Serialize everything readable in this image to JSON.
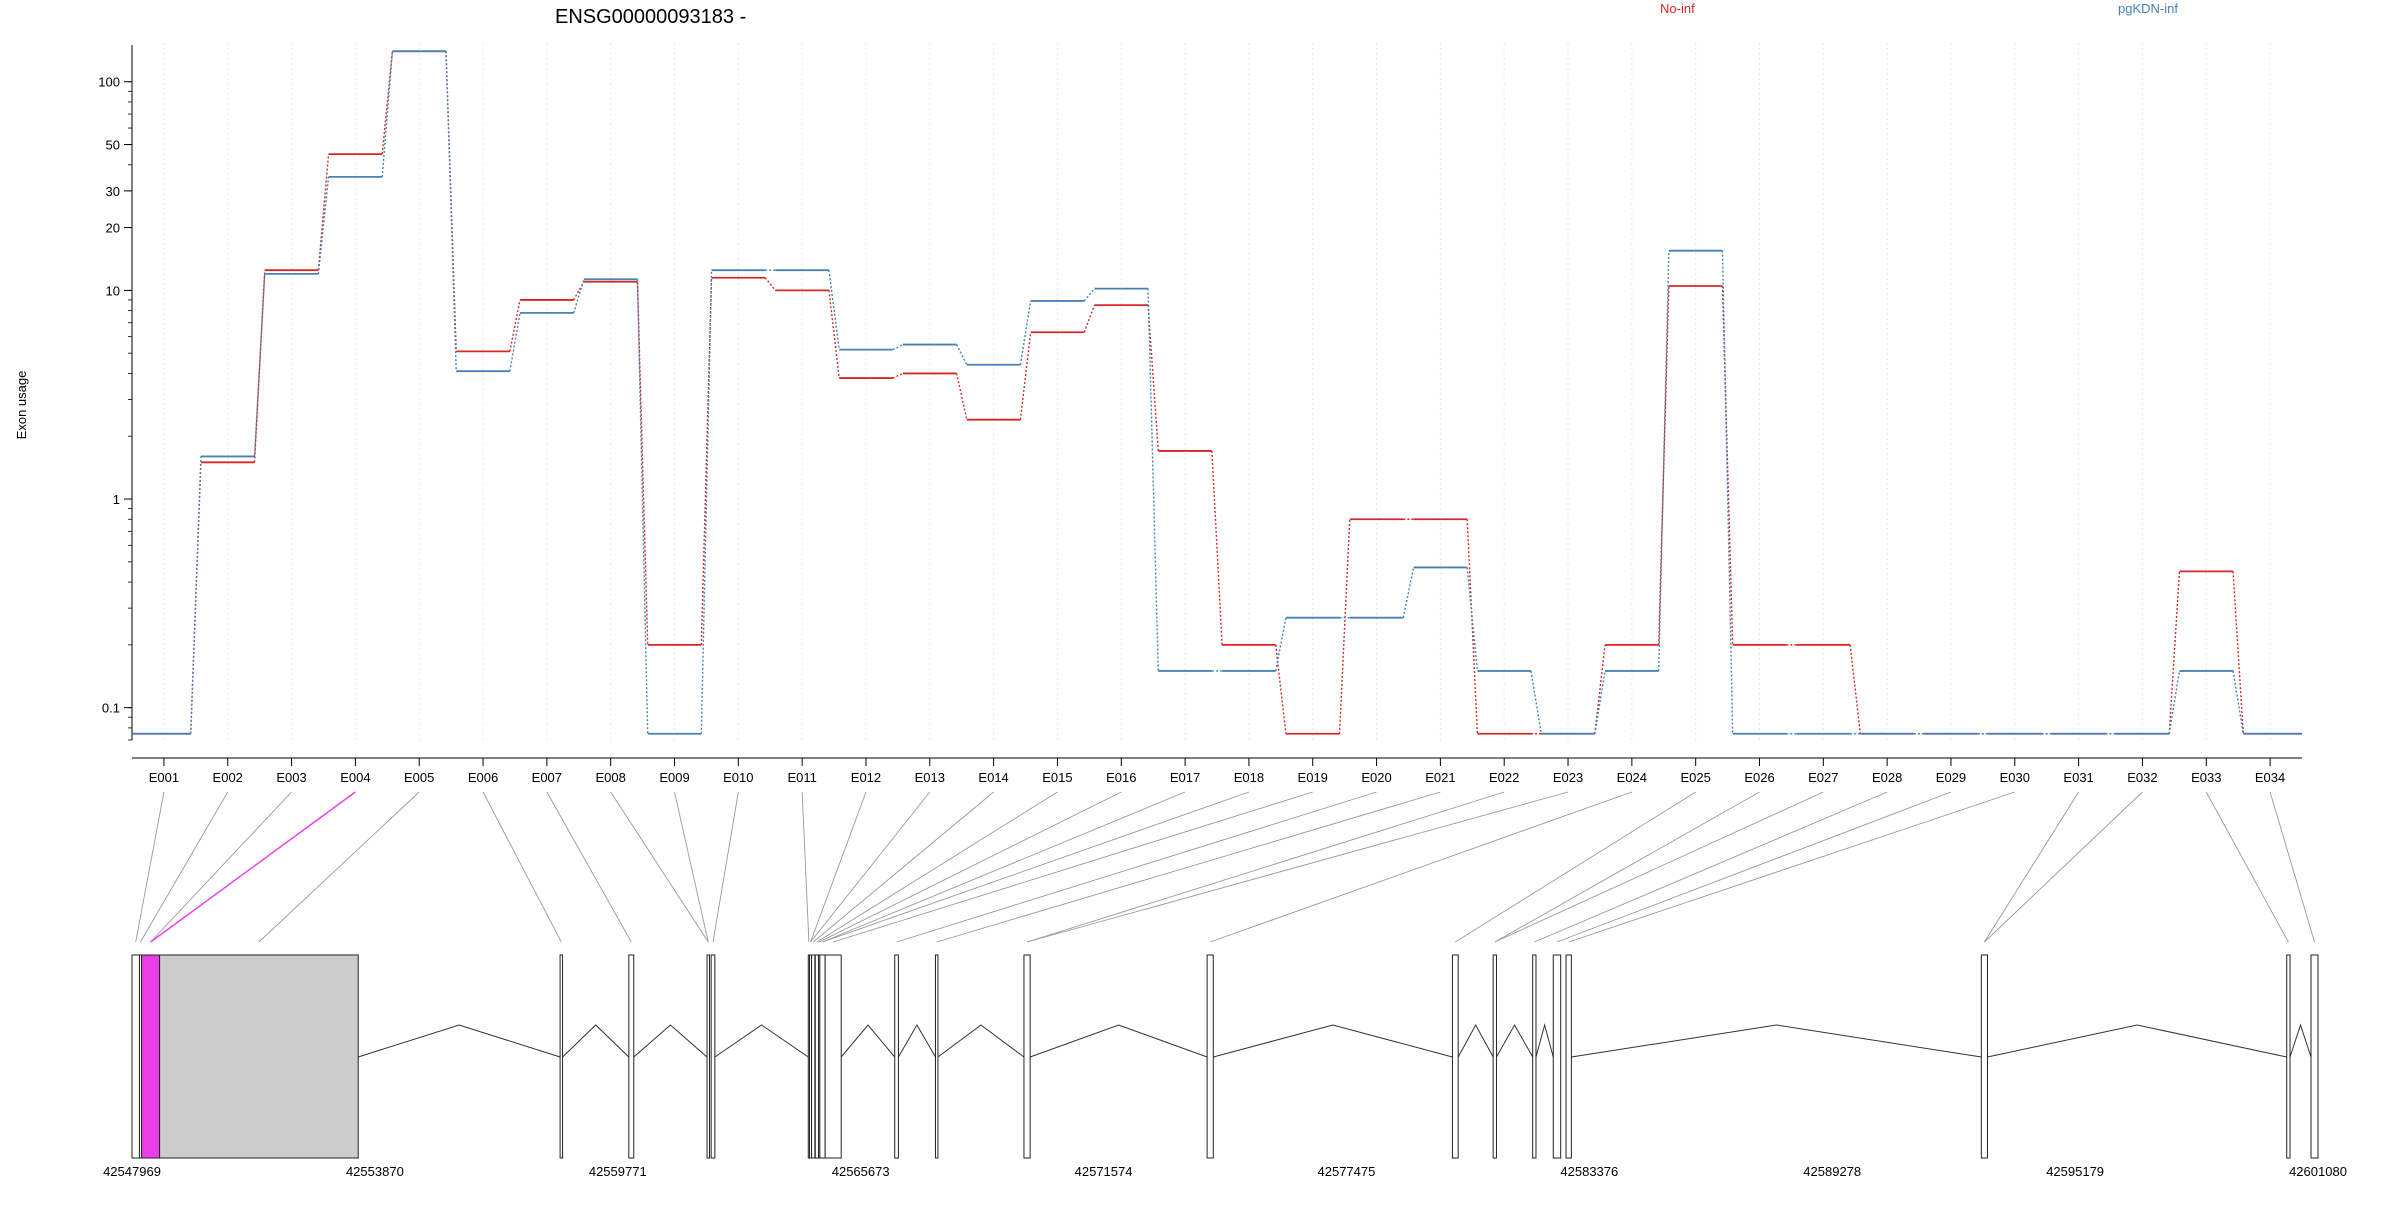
{
  "chart_data": {
    "type": "line",
    "title": "ENSG00000093183 -",
    "ylabel": "Exon usage",
    "xlabel": "",
    "y_scale": "log",
    "y_ticks": [
      0.1,
      1,
      10,
      20,
      30,
      50,
      100
    ],
    "y_tick_labels": [
      "0.1",
      "1",
      "10",
      "20",
      "30",
      "50",
      "100"
    ],
    "ylim": [
      0.07,
      150
    ],
    "grid": "vertical dotted",
    "legend_placement": "top",
    "categories": [
      "E001",
      "E002",
      "E003",
      "E004",
      "E005",
      "E006",
      "E007",
      "E008",
      "E009",
      "E010",
      "E011",
      "E012",
      "E013",
      "E014",
      "E015",
      "E016",
      "E017",
      "E018",
      "E019",
      "E020",
      "E021",
      "E022",
      "E023",
      "E024",
      "E025",
      "E026",
      "E027",
      "E028",
      "E029",
      "E030",
      "E031",
      "E032",
      "E033",
      "E034"
    ],
    "series": [
      {
        "name": "No-inf",
        "color": "#d62728",
        "values": [
          0.075,
          1.5,
          12.5,
          45,
          140,
          5.1,
          9,
          11,
          0.2,
          11.5,
          10,
          3.8,
          4,
          2.4,
          6.3,
          8.5,
          1.7,
          0.2,
          0.075,
          0.8,
          0.8,
          0.075,
          0.075,
          0.2,
          10.5,
          0.2,
          0.2,
          0.075,
          0.075,
          0.075,
          0.075,
          0.075,
          0.45,
          0.075
        ]
      },
      {
        "name": "pgKDN-inf",
        "color": "#4682b4",
        "values": [
          0.075,
          1.6,
          12,
          35,
          140,
          4.1,
          7.8,
          11.3,
          0.075,
          12.5,
          12.5,
          5.2,
          5.5,
          4.4,
          8.9,
          10.2,
          0.15,
          0.15,
          0.27,
          0.27,
          0.47,
          0.15,
          0.075,
          0.15,
          15.5,
          0.075,
          0.075,
          0.075,
          0.075,
          0.075,
          0.075,
          0.075,
          0.15,
          0.075
        ]
      }
    ],
    "highlighted_exon": "E004",
    "highlight_color": "#e83ee8",
    "gene_model": {
      "coordinate_ticks": [
        "42547969",
        "42553870",
        "42559771",
        "42565673",
        "42571574",
        "42577475",
        "42583376",
        "42589278",
        "42595179",
        "42601080"
      ],
      "range": [
        42547969,
        42601080
      ],
      "exons": [
        [
          42547969,
          42548150
        ],
        [
          42548150,
          42548200
        ],
        [
          42548200,
          42548640
        ],
        [
          42548640,
          42553465
        ],
        [
          42558370,
          42558430
        ],
        [
          42560040,
          42560160
        ],
        [
          42561940,
          42562000
        ],
        [
          42562040,
          42562130
        ],
        [
          42564400,
          42564430
        ],
        [
          42564430,
          42564480
        ],
        [
          42564480,
          42564560
        ],
        [
          42564570,
          42564650
        ],
        [
          42564650,
          42564680
        ],
        [
          42564680,
          42564810
        ],
        [
          42564810,
          42565200
        ],
        [
          42566500,
          42566590
        ],
        [
          42567490,
          42567550
        ],
        [
          42569640,
          42569790
        ],
        [
          42574090,
          42574240
        ],
        [
          42580050,
          42580190
        ],
        [
          42581040,
          42581120
        ],
        [
          42582000,
          42582080
        ],
        [
          42582500,
          42582680
        ],
        [
          42582810,
          42582940
        ],
        [
          42592900,
          42593050
        ],
        [
          42600320,
          42600400
        ],
        [
          42600910,
          42601080
        ]
      ]
    }
  },
  "legend": {
    "items": [
      {
        "label": "No-inf",
        "color": "#d62728"
      },
      {
        "label": "pgKDN-inf",
        "color": "#4682b4"
      }
    ]
  }
}
